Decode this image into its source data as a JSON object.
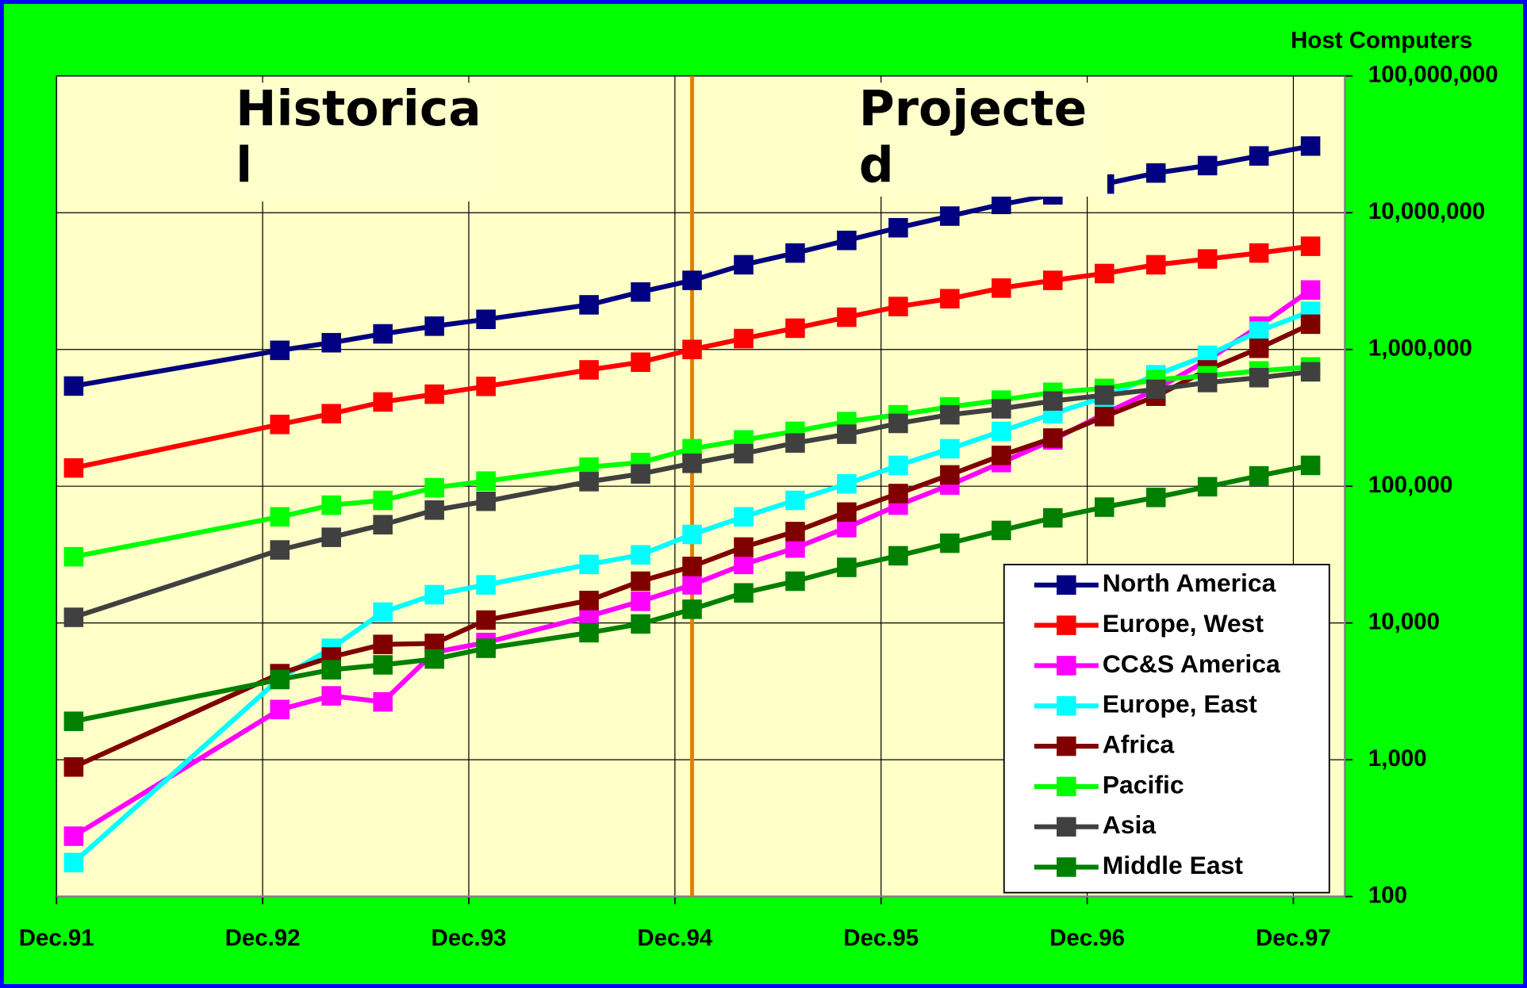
{
  "chart_data": {
    "type": "line",
    "y_axis_title": "Host Computers",
    "annotations": [
      [
        "Historica",
        "l"
      ],
      [
        "Projecte",
        "d"
      ]
    ],
    "divider_x": 37,
    "divider_color": "#e08000",
    "x": [
      1,
      13,
      16,
      19,
      22,
      25,
      31,
      34,
      37,
      40,
      43,
      46,
      49,
      52,
      55,
      58,
      61,
      64,
      67,
      70,
      73
    ],
    "xlim": [
      0,
      75
    ],
    "xticks": [
      {
        "value": 0,
        "label": "Dec.91"
      },
      {
        "value": 12,
        "label": "Dec.92"
      },
      {
        "value": 24,
        "label": "Dec.93"
      },
      {
        "value": 36,
        "label": "Dec.94"
      },
      {
        "value": 48,
        "label": "Dec.95"
      },
      {
        "value": 60,
        "label": "Dec.96"
      },
      {
        "value": 72,
        "label": "Dec.97"
      }
    ],
    "ylog": true,
    "ylim": [
      100,
      100000000
    ],
    "yticks": [
      100,
      {
        "value": 1000,
        "label": "1,000"
      },
      {
        "value": 10000,
        "label": "10,000"
      },
      {
        "value": 100000,
        "label": "100,000"
      },
      {
        "value": 1000000,
        "label": "1,000,000"
      },
      {
        "value": 10000000,
        "label": "10,000,000"
      },
      {
        "value": 100000000,
        "label": "100,000,000"
      }
    ],
    "grid": true,
    "legend": "lower right",
    "series": [
      {
        "name": "North America",
        "color": "#000080",
        "values": [
          540000,
          985000,
          1120000,
          1300000,
          1480000,
          1660000,
          2120000,
          2630000,
          3200000,
          4160000,
          5070000,
          6270000,
          7760000,
          9440000,
          11500000,
          13500000,
          16200000,
          19500000,
          22100000,
          26000000,
          30700000
        ]
      },
      {
        "name": "Europe, West",
        "color": "#ff0000",
        "values": [
          136000,
          283000,
          339000,
          413000,
          471000,
          537000,
          709000,
          807000,
          1000000,
          1200000,
          1430000,
          1720000,
          2060000,
          2350000,
          2810000,
          3200000,
          3590000,
          4160000,
          4590000,
          5070000,
          5680000
        ]
      },
      {
        "name": "CC&S America",
        "color": "#ff00ff",
        "values": [
          276,
          2330,
          2930,
          2650,
          6110,
          7200,
          11200,
          14400,
          19000,
          26800,
          35300,
          49800,
          72700,
          102000,
          149000,
          218000,
          339000,
          511000,
          835000,
          1480000,
          2720000
        ]
      },
      {
        "name": "Europe, East",
        "color": "#00ffff",
        "values": [
          177,
          3930,
          6530,
          12000,
          16100,
          19000,
          26800,
          31500,
          44400,
          59700,
          78800,
          104000,
          142000,
          188000,
          252000,
          339000,
          448000,
          653000,
          906000,
          1360000,
          1900000
        ]
      },
      {
        "name": "Africa",
        "color": "#800000",
        "values": [
          885,
          4260,
          5640,
          6970,
          7090,
          10500,
          14600,
          20200,
          25900,
          35900,
          46600,
          64700,
          88400,
          121000,
          168000,
          225000,
          323000,
          455000,
          709000,
          1020000,
          1530000
        ]
      },
      {
        "name": "Pacific",
        "color": "#00ff00",
        "values": [
          30500,
          59700,
          72700,
          78800,
          97500,
          109000,
          138000,
          149000,
          188000,
          218000,
          252000,
          297000,
          333000,
          380000,
          426000,
          486000,
          519000,
          601000,
          642000,
          697000,
          745000
        ]
      },
      {
        "name": "Asia",
        "color": "#404040",
        "values": [
          11000,
          34200,
          42300,
          52300,
          66900,
          77600,
          108000,
          123000,
          147000,
          173000,
          207000,
          240000,
          288000,
          333000,
          368000,
          420000,
          463000,
          511000,
          573000,
          622000,
          686000
        ]
      },
      {
        "name": "Middle East",
        "color": "#008000",
        "values": [
          1910,
          3860,
          4550,
          4940,
          5450,
          6530,
          8490,
          9840,
          12600,
          16600,
          20200,
          25500,
          31000,
          38300,
          47500,
          58700,
          70300,
          82800,
          99100,
          119000,
          142000
        ]
      }
    ]
  }
}
